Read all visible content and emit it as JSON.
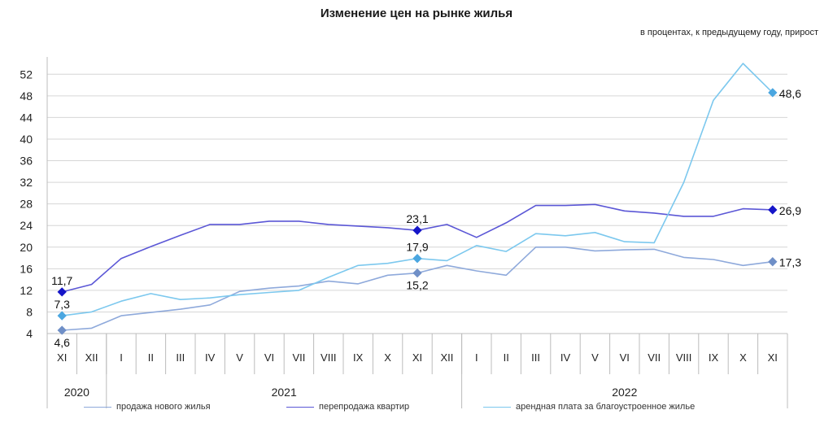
{
  "header": {
    "title": "Изменение цен на рынке жилья",
    "subtitle": "в процентах, к предыдущему году, прирост"
  },
  "chart_data": {
    "type": "line",
    "title": "Изменение цен на рынке жилья",
    "subtitle": "в процентах, к предыдущему году, прирост",
    "ylim": [
      4,
      54
    ],
    "yticks": [
      "4",
      "8",
      "12",
      "16",
      "20",
      "24",
      "28",
      "32",
      "36",
      "40",
      "44",
      "48",
      "52"
    ],
    "categories": [
      "XI",
      "XII",
      "I",
      "II",
      "III",
      "IV",
      "V",
      "VI",
      "VII",
      "VIII",
      "IX",
      "X",
      "XI",
      "XII",
      "I",
      "II",
      "III",
      "IV",
      "V",
      "VI",
      "VII",
      "VIII",
      "IX",
      "X",
      "XI"
    ],
    "years": [
      {
        "label": "2020",
        "count": 2
      },
      {
        "label": "2021",
        "count": 12
      },
      {
        "label": "2022",
        "count": 11
      }
    ],
    "grid": true,
    "legend_position": "bottom",
    "series": [
      {
        "name": "продажа нового  жилья",
        "color": "#8ea9db",
        "marker_color": "#6f8fc7",
        "values": [
          4.6,
          5.0,
          7.3,
          7.9,
          8.5,
          9.3,
          11.8,
          12.4,
          12.8,
          13.7,
          13.2,
          14.8,
          15.2,
          16.6,
          15.6,
          14.8,
          20.0,
          20.0,
          19.3,
          19.5,
          19.6,
          18.1,
          17.7,
          16.6,
          17.3
        ],
        "labels": [
          {
            "index": 0,
            "text": "4,6",
            "pos": "below"
          },
          {
            "index": 12,
            "text": "15,2",
            "pos": "below"
          },
          {
            "index": 24,
            "text": "17,3",
            "pos": "right"
          }
        ]
      },
      {
        "name": "перепродажа  квартир",
        "color": "#5b57d6",
        "marker_color": "#1515c8",
        "values": [
          11.7,
          13.1,
          17.9,
          20.1,
          22.2,
          24.2,
          24.2,
          24.8,
          24.8,
          24.2,
          23.9,
          23.6,
          23.1,
          24.2,
          21.8,
          24.5,
          27.7,
          27.7,
          27.9,
          26.7,
          26.3,
          25.7,
          25.7,
          27.1,
          26.9
        ],
        "labels": [
          {
            "index": 0,
            "text": "11,7",
            "pos": "above"
          },
          {
            "index": 12,
            "text": "23,1",
            "pos": "above"
          },
          {
            "index": 24,
            "text": "26,9",
            "pos": "right"
          }
        ]
      },
      {
        "name": "арендная плата за благоустроенное   жилье",
        "color": "#7cc8ee",
        "marker_color": "#4aa6e0",
        "values": [
          7.3,
          8.0,
          10.0,
          11.4,
          10.3,
          10.6,
          11.2,
          11.6,
          12.0,
          14.4,
          16.6,
          17.0,
          17.9,
          17.5,
          20.3,
          19.2,
          22.5,
          22.1,
          22.7,
          21.0,
          20.8,
          32.0,
          47.2,
          54.0,
          48.6
        ],
        "labels": [
          {
            "index": 0,
            "text": "7,3",
            "pos": "above"
          },
          {
            "index": 12,
            "text": "17,9",
            "pos": "above"
          },
          {
            "index": 24,
            "text": "48,6",
            "pos": "right"
          }
        ]
      }
    ]
  }
}
